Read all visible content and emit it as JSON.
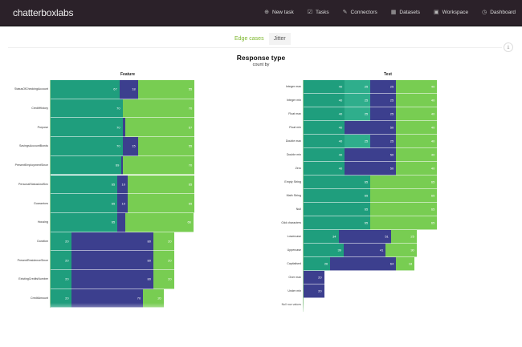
{
  "nav": {
    "logo": "chatterboxlabs",
    "items": [
      {
        "label": "New task",
        "icon": "plus-circle-icon"
      },
      {
        "label": "Tasks",
        "icon": "checkbox-icon"
      },
      {
        "label": "Connectors",
        "icon": "pencil-icon"
      },
      {
        "label": "Datasets",
        "icon": "grid-icon"
      },
      {
        "label": "Workspace",
        "icon": "folder-icon"
      },
      {
        "label": "Dashboard",
        "icon": "clock-icon"
      }
    ]
  },
  "tabs": [
    {
      "label": "Edge cases",
      "active": true
    },
    {
      "label": "Jitter",
      "active": false
    }
  ],
  "download_icon": "download-icon",
  "title": "Response type",
  "subtitle": "count by",
  "colors": {
    "teal": "#1f9e7d",
    "teal_light": "#2fae8c",
    "purple": "#3c3f8e",
    "green": "#78cd52"
  },
  "chart_data": [
    {
      "type": "bar",
      "orientation": "horizontal-stacked",
      "title": "Feature",
      "categories": [
        "StatusOfCheckingAccount",
        "CreditHistory",
        "Purpose",
        "SavingsAccountBonds",
        "PresentEmploymentSince",
        "PersonalStatusAndSex",
        "Guarantors",
        "Housing",
        "Duration",
        "PresentResidenceSince",
        "ExistingCreditsNumber",
        "CreditAmount"
      ],
      "rows": [
        [
          {
            "c": "teal",
            "v": 67
          },
          {
            "c": "purple",
            "v": 18
          },
          {
            "c": "green",
            "v": 55
          }
        ],
        [
          {
            "c": "teal",
            "v": 70
          },
          {
            "c": "green",
            "v": 70
          }
        ],
        [
          {
            "c": "teal",
            "v": 70
          },
          {
            "c": "purple",
            "v": 3
          },
          {
            "c": "green",
            "v": 67
          }
        ],
        [
          {
            "c": "teal",
            "v": 70
          },
          {
            "c": "purple",
            "v": 15
          },
          {
            "c": "green",
            "v": 55
          }
        ],
        [
          {
            "c": "teal",
            "v": 69
          },
          {
            "c": "purple",
            "v": 1
          },
          {
            "c": "green",
            "v": 70
          }
        ],
        [
          {
            "c": "teal",
            "v": 65
          },
          {
            "c": "purple",
            "v": 10
          },
          {
            "c": "green",
            "v": 65
          }
        ],
        [
          {
            "c": "teal",
            "v": 65
          },
          {
            "c": "purple",
            "v": 10
          },
          {
            "c": "green",
            "v": 65
          }
        ],
        [
          {
            "c": "teal",
            "v": 65
          },
          {
            "c": "purple",
            "v": 8
          },
          {
            "c": "green",
            "v": 66
          }
        ],
        [
          {
            "c": "teal",
            "v": 20
          },
          {
            "c": "purple",
            "v": 80
          },
          {
            "c": "green",
            "v": 20
          }
        ],
        [
          {
            "c": "teal",
            "v": 20
          },
          {
            "c": "purple",
            "v": 80
          },
          {
            "c": "green",
            "v": 20
          }
        ],
        [
          {
            "c": "teal",
            "v": 20
          },
          {
            "c": "purple",
            "v": 80
          },
          {
            "c": "green",
            "v": 20
          }
        ],
        [
          {
            "c": "teal",
            "v": 20
          },
          {
            "c": "purple",
            "v": 70
          },
          {
            "c": "green",
            "v": 20
          }
        ]
      ]
    },
    {
      "type": "bar",
      "orientation": "horizontal-stacked",
      "title": "Test",
      "categories": [
        "Integer max",
        "Integer min",
        "Float max",
        "Float min",
        "Double max",
        "Double min",
        "Zero",
        "Empty String",
        "Math String",
        "Null",
        "Odd characters",
        "Lowercase",
        "Uppercase",
        "Capitalised",
        "Over max",
        "Under min",
        "Null row values"
      ],
      "rows": [
        [
          {
            "c": "teal",
            "v": 40
          },
          {
            "c": "teal_light",
            "v": 25
          },
          {
            "c": "purple",
            "v": 25
          },
          {
            "c": "green",
            "v": 40
          }
        ],
        [
          {
            "c": "teal",
            "v": 40
          },
          {
            "c": "teal_light",
            "v": 25
          },
          {
            "c": "purple",
            "v": 25
          },
          {
            "c": "green",
            "v": 40
          }
        ],
        [
          {
            "c": "teal",
            "v": 40
          },
          {
            "c": "teal_light",
            "v": 25
          },
          {
            "c": "purple",
            "v": 25
          },
          {
            "c": "green",
            "v": 40
          }
        ],
        [
          {
            "c": "teal",
            "v": 40
          },
          {
            "c": "purple",
            "v": 50
          },
          {
            "c": "green",
            "v": 40
          }
        ],
        [
          {
            "c": "teal",
            "v": 40
          },
          {
            "c": "teal_light",
            "v": 25
          },
          {
            "c": "purple",
            "v": 25
          },
          {
            "c": "green",
            "v": 40
          }
        ],
        [
          {
            "c": "teal",
            "v": 40
          },
          {
            "c": "purple",
            "v": 50
          },
          {
            "c": "green",
            "v": 40
          }
        ],
        [
          {
            "c": "teal",
            "v": 40
          },
          {
            "c": "purple",
            "v": 50
          },
          {
            "c": "green",
            "v": 40
          }
        ],
        [
          {
            "c": "teal",
            "v": 65
          },
          {
            "c": "green",
            "v": 65
          }
        ],
        [
          {
            "c": "teal",
            "v": 65
          },
          {
            "c": "green",
            "v": 65
          }
        ],
        [
          {
            "c": "teal",
            "v": 65
          },
          {
            "c": "green",
            "v": 65
          }
        ],
        [
          {
            "c": "teal",
            "v": 65
          },
          {
            "c": "green",
            "v": 65
          }
        ],
        [
          {
            "c": "teal",
            "v": 34
          },
          {
            "c": "purple",
            "v": 51
          },
          {
            "c": "green",
            "v": 25
          }
        ],
        [
          {
            "c": "teal",
            "v": 39
          },
          {
            "c": "purple",
            "v": 41
          },
          {
            "c": "green",
            "v": 30
          }
        ],
        [
          {
            "c": "teal",
            "v": 26
          },
          {
            "c": "purple",
            "v": 64
          },
          {
            "c": "green",
            "v": 18
          }
        ],
        [
          {
            "c": "purple",
            "v": 20
          }
        ],
        [
          {
            "c": "purple",
            "v": 20
          }
        ],
        []
      ]
    }
  ]
}
